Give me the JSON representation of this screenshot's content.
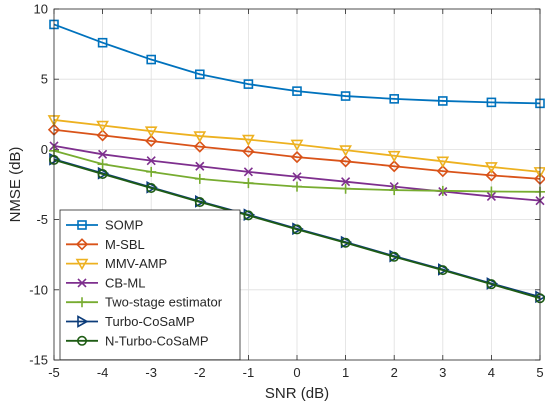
{
  "chart_data": {
    "type": "line",
    "xlabel": "SNR (dB)",
    "ylabel": "NMSE (dB)",
    "xlim": [
      -5,
      5
    ],
    "ylim": [
      -15,
      10
    ],
    "xticks": [
      -5,
      -4,
      -3,
      -2,
      -1,
      0,
      1,
      2,
      3,
      4,
      5
    ],
    "yticks": [
      -15,
      -10,
      -5,
      0,
      5,
      10
    ],
    "xtick_labels": [
      "-5",
      "-4",
      "-3",
      "-2",
      "-1",
      "0",
      "1",
      "2",
      "3",
      "4",
      "5"
    ],
    "ytick_labels": [
      "-15",
      "-10",
      "-5",
      "0",
      "5",
      "10"
    ],
    "grid": true,
    "legend_position": "bottom-left",
    "x": [
      -5,
      -4,
      -3,
      -2,
      -1,
      0,
      1,
      2,
      3,
      4,
      5
    ],
    "series": [
      {
        "name": "SOMP",
        "color": "#0072BD",
        "marker": "square",
        "values": [
          8.9,
          7.6,
          6.4,
          5.35,
          4.65,
          4.15,
          3.8,
          3.6,
          3.45,
          3.35,
          3.28
        ]
      },
      {
        "name": "M-SBL",
        "color": "#D95319",
        "marker": "diamond",
        "values": [
          1.4,
          1.0,
          0.6,
          0.2,
          -0.15,
          -0.55,
          -0.85,
          -1.2,
          -1.55,
          -1.85,
          -2.1
        ]
      },
      {
        "name": "MMV-AMP",
        "color": "#EDB120",
        "marker": "triangle-down",
        "values": [
          2.1,
          1.7,
          1.3,
          0.95,
          0.7,
          0.35,
          -0.05,
          -0.45,
          -0.85,
          -1.25,
          -1.6
        ]
      },
      {
        "name": "CB-ML",
        "color": "#7E2F8E",
        "marker": "x",
        "values": [
          0.25,
          -0.35,
          -0.8,
          -1.2,
          -1.6,
          -1.95,
          -2.3,
          -2.65,
          -3.0,
          -3.35,
          -3.65
        ]
      },
      {
        "name": "Two-stage estimator",
        "color": "#77AC30",
        "marker": "plus",
        "values": [
          -0.1,
          -1.05,
          -1.6,
          -2.1,
          -2.4,
          -2.65,
          -2.8,
          -2.9,
          -2.95,
          -3.0,
          -3.02
        ]
      },
      {
        "name": "Turbo-CoSaMP",
        "color": "#0C3C7A",
        "marker": "triangle-right",
        "values": [
          -0.7,
          -1.7,
          -2.7,
          -3.7,
          -4.65,
          -5.65,
          -6.6,
          -7.6,
          -8.55,
          -9.55,
          -10.5
        ]
      },
      {
        "name": "N-Turbo-CoSaMP",
        "color": "#1E5C14",
        "marker": "circle",
        "values": [
          -0.75,
          -1.75,
          -2.75,
          -3.75,
          -4.7,
          -5.7,
          -6.65,
          -7.65,
          -8.6,
          -9.6,
          -10.6
        ]
      }
    ]
  }
}
